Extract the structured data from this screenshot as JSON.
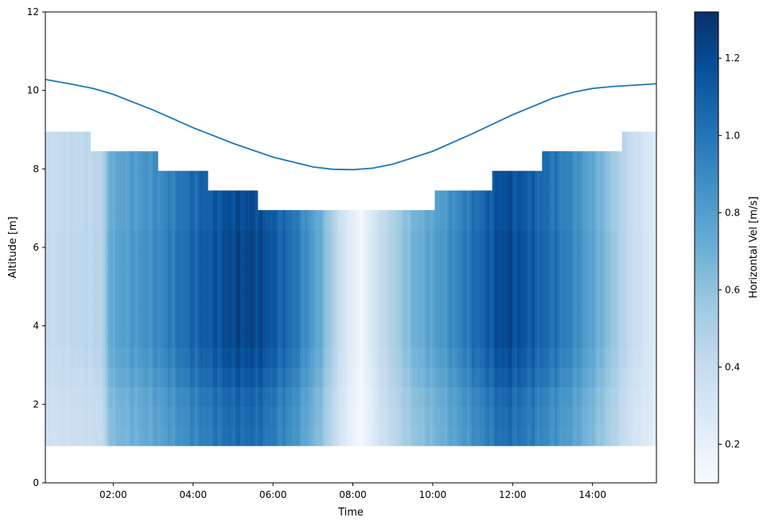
{
  "chart_data": {
    "type": "heatmap",
    "title": "",
    "xlabel": "Time",
    "ylabel": "Altitude [m]",
    "colorbar_label": "Horizontal Vel [m/s]",
    "colormap": "Blues",
    "xlim_hours": [
      0.3,
      15.6
    ],
    "ylim": [
      0,
      12
    ],
    "x_ticks": [
      {
        "value": 2,
        "label": "02:00"
      },
      {
        "value": 4,
        "label": "04:00"
      },
      {
        "value": 6,
        "label": "06:00"
      },
      {
        "value": 8,
        "label": "08:00"
      },
      {
        "value": 10,
        "label": "10:00"
      },
      {
        "value": 12,
        "label": "12:00"
      },
      {
        "value": 14,
        "label": "14:00"
      }
    ],
    "y_ticks": [
      {
        "value": 0,
        "label": "0"
      },
      {
        "value": 2,
        "label": "2"
      },
      {
        "value": 4,
        "label": "4"
      },
      {
        "value": 6,
        "label": "6"
      },
      {
        "value": 8,
        "label": "8"
      },
      {
        "value": 10,
        "label": "10"
      },
      {
        "value": 12,
        "label": "12"
      }
    ],
    "colorbar_range": [
      0.1,
      1.32
    ],
    "colorbar_ticks": [
      {
        "value": 0.2,
        "label": "0.2"
      },
      {
        "value": 0.4,
        "label": "0.4"
      },
      {
        "value": 0.6,
        "label": "0.6"
      },
      {
        "value": 0.8,
        "label": "0.8"
      },
      {
        "value": 1.0,
        "label": "1.0"
      },
      {
        "value": 1.2,
        "label": "1.2"
      }
    ],
    "cell_bottom_altitude": 0.95,
    "cell_height": 0.5,
    "column_width_hours": 0.0625,
    "max_altitude_steps": [
      {
        "start": 0.3,
        "end": 1.4,
        "top": 8.95
      },
      {
        "start": 1.4,
        "end": 3.1,
        "top": 8.45
      },
      {
        "start": 3.1,
        "end": 4.35,
        "top": 7.95
      },
      {
        "start": 4.35,
        "end": 5.6,
        "top": 7.45
      },
      {
        "start": 5.6,
        "end": 10.05,
        "top": 6.95
      },
      {
        "start": 10.05,
        "end": 11.5,
        "top": 7.45
      },
      {
        "start": 11.5,
        "end": 12.75,
        "top": 7.95
      },
      {
        "start": 12.75,
        "end": 14.75,
        "top": 8.45
      },
      {
        "start": 14.75,
        "end": 15.6,
        "top": 8.95
      }
    ],
    "velocity_profile_by_time": [
      {
        "t": 0.3,
        "v": 0.4
      },
      {
        "t": 1.7,
        "v": 0.46
      },
      {
        "t": 1.95,
        "v": 0.75
      },
      {
        "t": 3.0,
        "v": 0.88
      },
      {
        "t": 4.0,
        "v": 1.07
      },
      {
        "t": 5.0,
        "v": 1.22
      },
      {
        "t": 5.6,
        "v": 1.22
      },
      {
        "t": 6.5,
        "v": 1.02
      },
      {
        "t": 7.2,
        "v": 0.72
      },
      {
        "t": 7.8,
        "v": 0.3
      },
      {
        "t": 8.2,
        "v": 0.14
      },
      {
        "t": 8.7,
        "v": 0.4
      },
      {
        "t": 9.5,
        "v": 0.68
      },
      {
        "t": 10.2,
        "v": 0.82
      },
      {
        "t": 11.0,
        "v": 1.02
      },
      {
        "t": 11.8,
        "v": 1.22
      },
      {
        "t": 12.5,
        "v": 1.12
      },
      {
        "t": 13.5,
        "v": 0.92
      },
      {
        "t": 14.3,
        "v": 0.66
      },
      {
        "t": 14.9,
        "v": 0.42
      },
      {
        "t": 15.6,
        "v": 0.25
      }
    ],
    "altitude_factor": [
      {
        "z": 1.2,
        "f": 0.85
      },
      {
        "z": 1.7,
        "f": 0.86
      },
      {
        "z": 2.2,
        "f": 0.88
      },
      {
        "z": 2.7,
        "f": 0.93
      },
      {
        "z": 3.2,
        "f": 0.97
      },
      {
        "z": 3.7,
        "f": 1.0
      },
      {
        "z": 4.2,
        "f": 1.0
      },
      {
        "z": 4.7,
        "f": 1.0
      },
      {
        "z": 5.2,
        "f": 1.0
      },
      {
        "z": 5.7,
        "f": 1.0
      },
      {
        "z": 6.2,
        "f": 1.0
      },
      {
        "z": 6.7,
        "f": 0.98
      },
      {
        "z": 7.2,
        "f": 0.98
      },
      {
        "z": 7.7,
        "f": 0.98
      },
      {
        "z": 8.2,
        "f": 0.98
      },
      {
        "z": 8.7,
        "f": 0.98
      }
    ],
    "series": [
      {
        "type": "line",
        "color": "#1f77b4",
        "x": [
          0.3,
          1.0,
          1.5,
          2.0,
          3.0,
          4.0,
          5.0,
          6.0,
          7.0,
          7.5,
          8.0,
          8.5,
          9.0,
          10.0,
          11.0,
          12.0,
          13.0,
          13.5,
          14.0,
          14.5,
          15.0,
          15.6
        ],
        "y": [
          10.28,
          10.15,
          10.05,
          9.9,
          9.5,
          9.05,
          8.65,
          8.3,
          8.05,
          7.99,
          7.98,
          8.02,
          8.12,
          8.45,
          8.9,
          9.38,
          9.8,
          9.95,
          10.05,
          10.1,
          10.13,
          10.17
        ]
      }
    ]
  }
}
